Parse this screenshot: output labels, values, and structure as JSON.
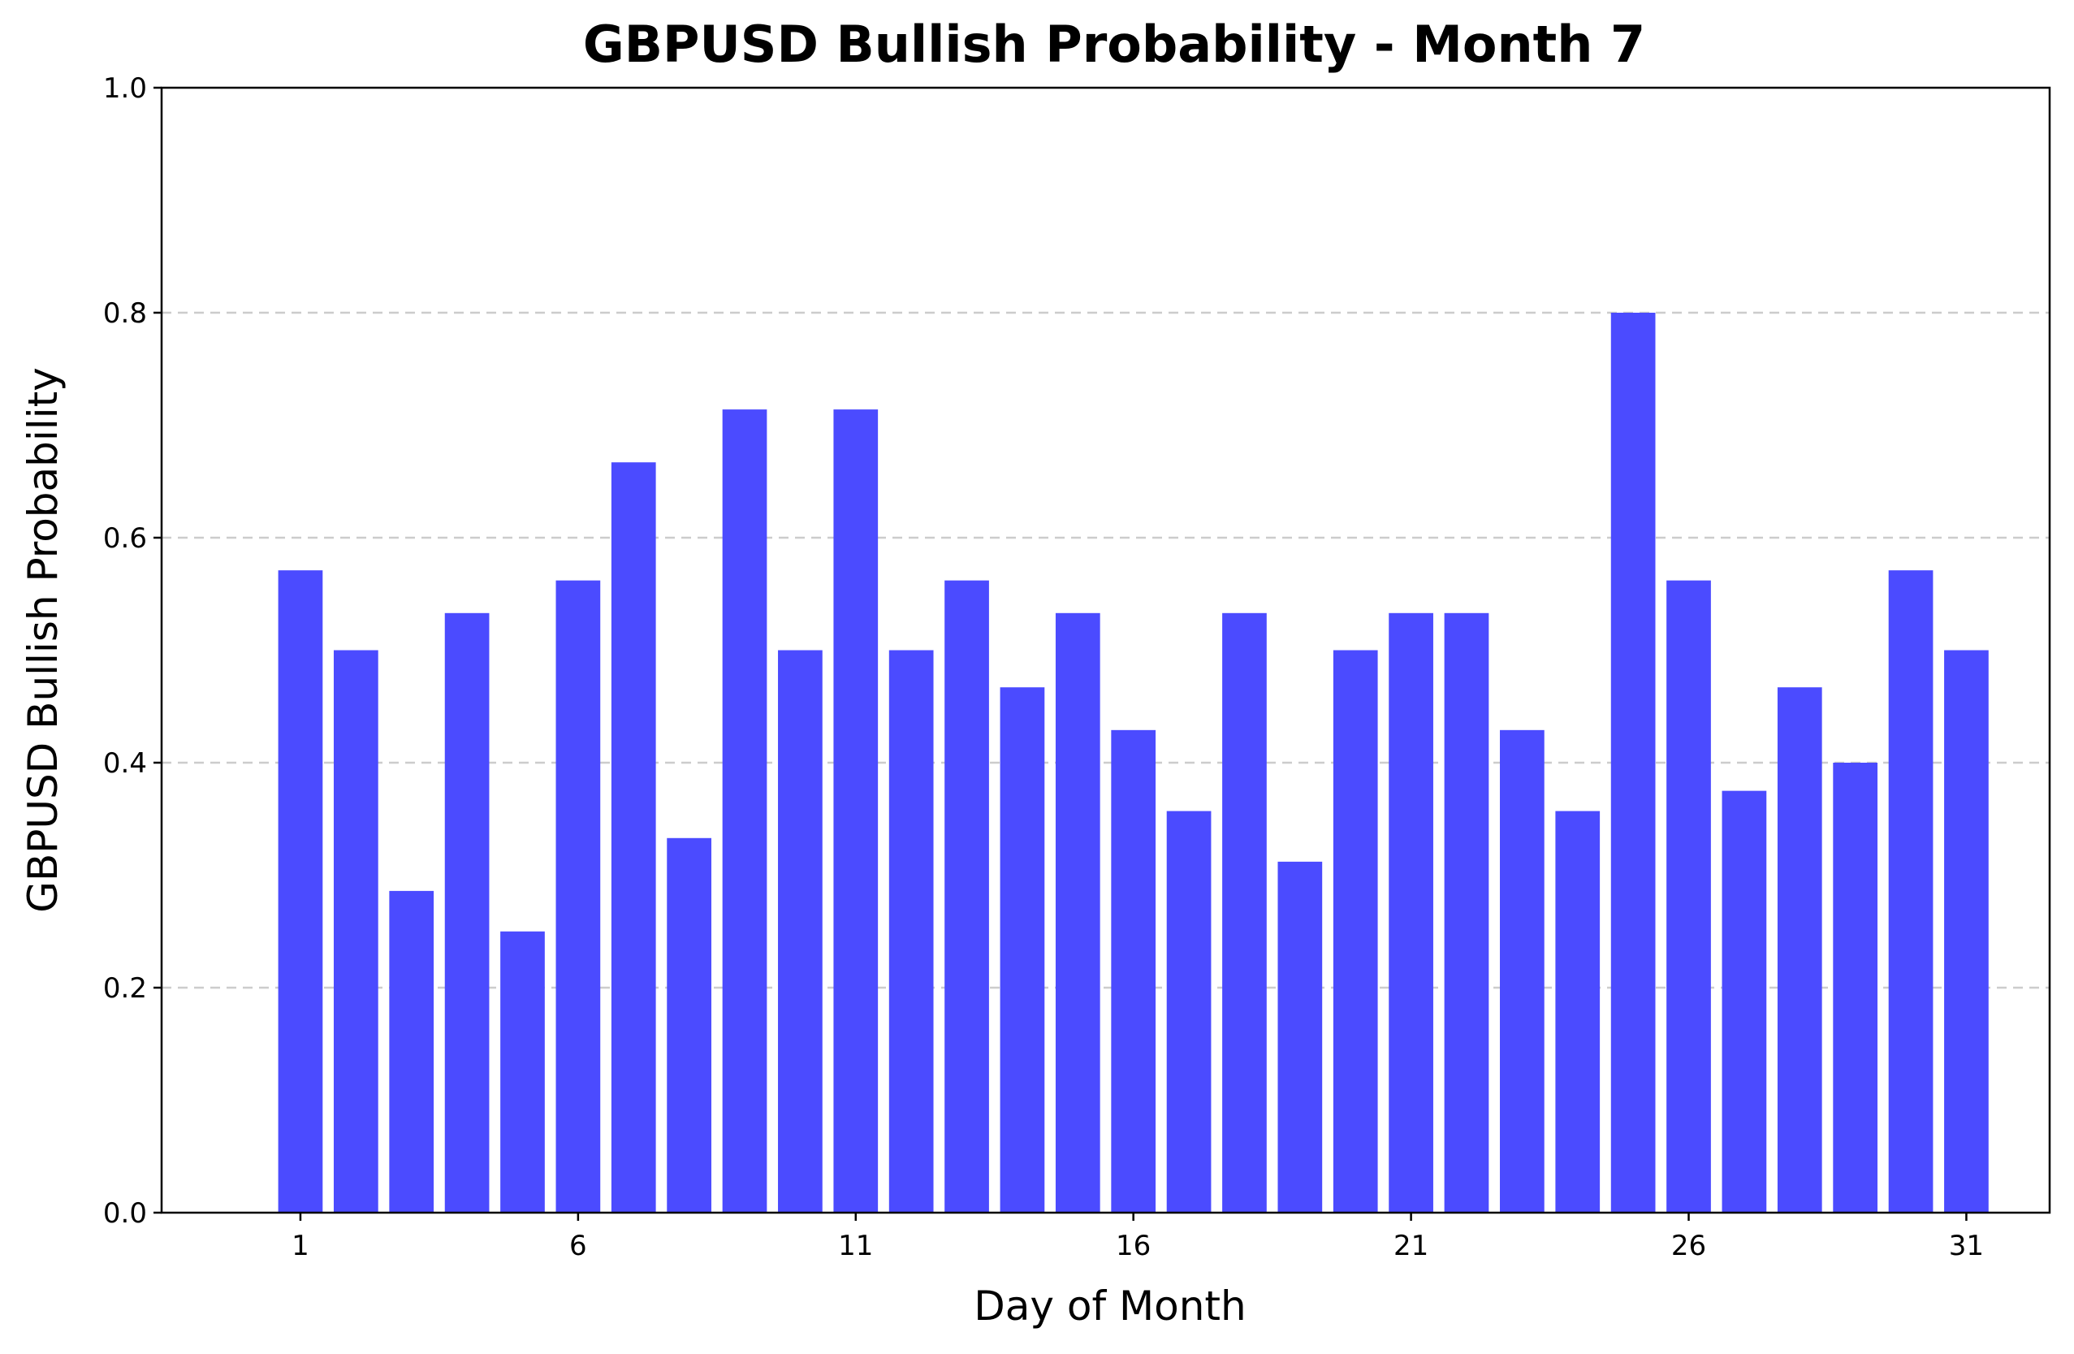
{
  "chart_data": {
    "type": "bar",
    "title": "GBPUSD Bullish Probability - Month 7",
    "xlabel": "Day of Month",
    "ylabel": "GBPUSD Bullish Probability",
    "ylim": [
      0,
      1.0
    ],
    "xlim": [
      -1.5,
      32.5
    ],
    "grid": "y-dashed",
    "bar_color": "#4b4bff",
    "grid_color": "#cccccc",
    "yticks": [
      0.0,
      0.2,
      0.4,
      0.6,
      0.8,
      1.0
    ],
    "ytick_labels": [
      "0.0",
      "0.2",
      "0.4",
      "0.6",
      "0.8",
      "1.0"
    ],
    "xticks": [
      1,
      6,
      11,
      16,
      21,
      26,
      31
    ],
    "xtick_labels": [
      "1",
      "6",
      "11",
      "16",
      "21",
      "26",
      "31"
    ],
    "categories": [
      1,
      2,
      3,
      4,
      5,
      6,
      7,
      8,
      9,
      10,
      11,
      12,
      13,
      14,
      15,
      16,
      17,
      18,
      19,
      20,
      21,
      22,
      23,
      24,
      25,
      26,
      27,
      28,
      29,
      30,
      31
    ],
    "values": [
      0.571,
      0.5,
      0.286,
      0.533,
      0.25,
      0.562,
      0.667,
      0.333,
      0.714,
      0.5,
      0.714,
      0.5,
      0.562,
      0.467,
      0.533,
      0.429,
      0.357,
      0.533,
      0.312,
      0.5,
      0.533,
      0.533,
      0.429,
      0.357,
      0.8,
      0.562,
      0.375,
      0.467,
      0.4,
      0.571,
      0.5
    ]
  }
}
